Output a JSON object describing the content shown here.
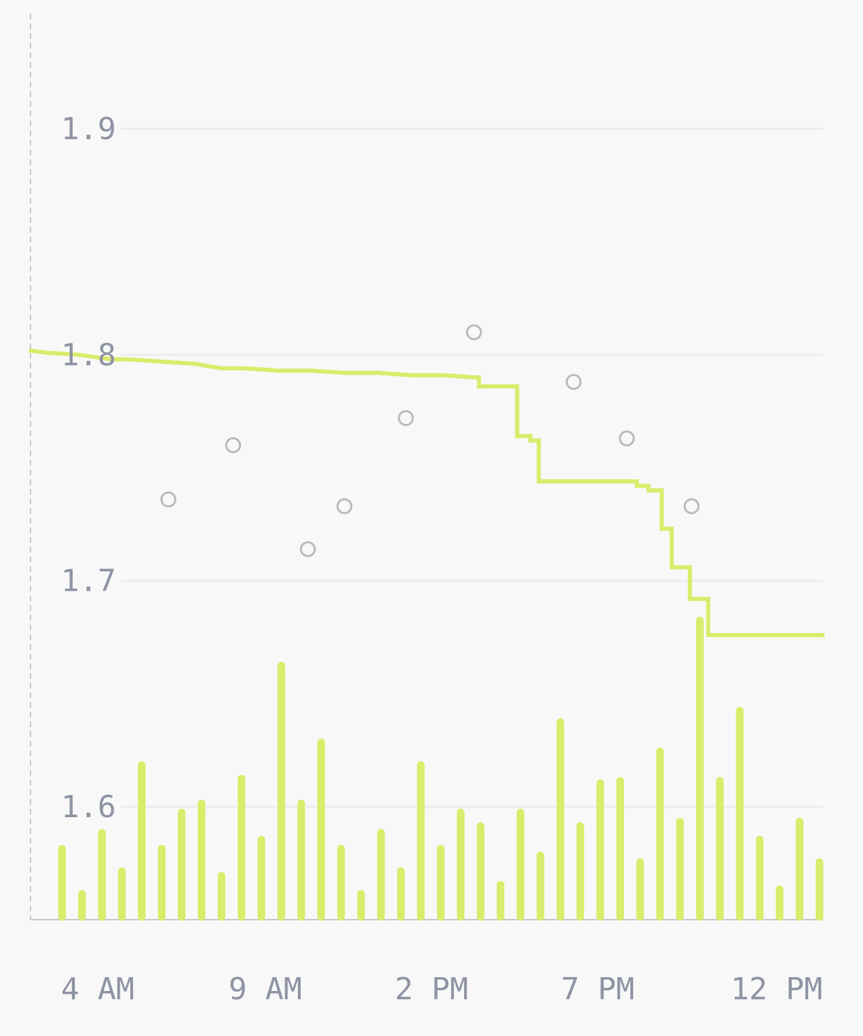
{
  "chart_data": {
    "type": "bar",
    "title": "",
    "xlabel": "",
    "ylabel": "",
    "ylim": [
      1.55,
      1.95
    ],
    "yticks": [
      "1.6",
      "1.7",
      "1.8",
      "1.9"
    ],
    "xticks": [
      "4 AM",
      "9 AM",
      "2 PM",
      "7 PM",
      "12 PM"
    ],
    "grid": true,
    "x_start_hour": 3.05,
    "x_end_hour": 26.9,
    "colors": {
      "accent": "#d9ec6b",
      "points": "#b8bac2",
      "grid": "#ececf0",
      "ticks": "#8e93a4"
    },
    "bars": {
      "x": [
        4.0,
        4.6,
        5.2,
        5.8,
        6.4,
        7.0,
        7.6,
        8.2,
        8.8,
        9.4,
        10.0,
        10.6,
        11.2,
        11.8,
        12.4,
        13.0,
        13.6,
        14.2,
        14.8,
        15.4,
        16.0,
        16.6,
        17.2,
        17.8,
        18.4,
        19.0,
        19.6,
        20.2,
        20.8,
        21.4,
        22.0,
        22.6,
        23.2,
        23.8,
        24.4,
        25.0,
        25.6,
        26.2,
        26.8
      ],
      "values": [
        1.583,
        1.563,
        1.59,
        1.573,
        1.62,
        1.583,
        1.599,
        1.603,
        1.571,
        1.614,
        1.587,
        1.664,
        1.603,
        1.63,
        1.583,
        1.563,
        1.59,
        1.573,
        1.62,
        1.583,
        1.599,
        1.593,
        1.567,
        1.599,
        1.58,
        1.639,
        1.593,
        1.612,
        1.613,
        1.577,
        1.626,
        1.595,
        1.684,
        1.613,
        1.644,
        1.587,
        1.565,
        1.595,
        1.577
      ]
    },
    "points": {
      "x": [
        7.2,
        9.15,
        11.4,
        12.5,
        14.35,
        16.4,
        19.4,
        21.0,
        22.95
      ],
      "values": [
        1.736,
        1.76,
        1.714,
        1.733,
        1.772,
        1.81,
        1.788,
        1.763,
        1.733
      ]
    },
    "trend": {
      "x": [
        3.0,
        3.5,
        4.5,
        5.5,
        6.0,
        7.0,
        8.0,
        8.8,
        9.5,
        10.5,
        11.5,
        12.5,
        13.5,
        14.5,
        15.5,
        16.4,
        16.4,
        16.55,
        16.55,
        17.7,
        17.7,
        18.1,
        18.1,
        18.35,
        18.35,
        21.3,
        21.3,
        21.65,
        21.65,
        22.05,
        22.05,
        22.35,
        22.35,
        22.9,
        22.9,
        23.45,
        23.45,
        24.85,
        24.85,
        25.25,
        25.25,
        26.95
      ],
      "values": [
        1.802,
        1.801,
        1.8,
        1.798,
        1.798,
        1.797,
        1.796,
        1.794,
        1.794,
        1.793,
        1.793,
        1.792,
        1.792,
        1.791,
        1.791,
        1.79,
        1.79,
        1.79,
        1.786,
        1.786,
        1.764,
        1.764,
        1.762,
        1.762,
        1.744,
        1.744,
        1.742,
        1.742,
        1.74,
        1.74,
        1.723,
        1.723,
        1.706,
        1.706,
        1.692,
        1.692,
        1.676,
        1.676,
        1.676,
        1.676,
        1.676,
        1.676
      ]
    }
  }
}
